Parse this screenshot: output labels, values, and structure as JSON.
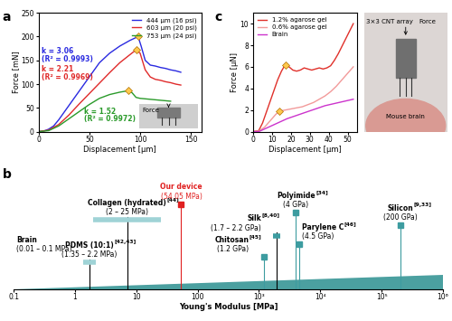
{
  "chart_data": [
    {
      "type": "line",
      "title": "a",
      "xlabel": "Displacement [μm]",
      "ylabel": "Force [mN]",
      "xlim": [
        0,
        160
      ],
      "xticks": [
        0,
        50,
        100,
        150
      ],
      "ylim": [
        0,
        250
      ],
      "yticks": [
        0,
        50,
        100,
        150,
        200,
        250
      ],
      "legend": "upper right",
      "series": [
        {
          "name": "444 μm (16 psi)",
          "color": "#2a2ae0",
          "x": [
            0,
            5,
            10,
            15,
            20,
            30,
            40,
            50,
            60,
            70,
            80,
            90,
            98,
            101,
            105,
            110,
            115,
            120,
            125,
            130,
            135,
            140
          ],
          "values": [
            0,
            1,
            5,
            12,
            25,
            55,
            85,
            115,
            145,
            165,
            180,
            192,
            200,
            180,
            150,
            140,
            138,
            135,
            133,
            130,
            128,
            125
          ],
          "peak": {
            "x": 98,
            "y": 200
          }
        },
        {
          "name": "603 μm (20 psi)",
          "color": "#e02a2a",
          "x": [
            0,
            10,
            20,
            30,
            40,
            50,
            60,
            70,
            80,
            90,
            96,
            100,
            105,
            110,
            115,
            120,
            125,
            130,
            135,
            140
          ],
          "values": [
            0,
            3,
            15,
            35,
            58,
            80,
            102,
            124,
            145,
            162,
            172,
            165,
            130,
            115,
            110,
            108,
            105,
            103,
            100,
            98
          ],
          "peak": {
            "x": 96,
            "y": 172
          }
        },
        {
          "name": "753 μm (24 psi)",
          "color": "#2a9a2a",
          "x": [
            0,
            10,
            20,
            30,
            40,
            50,
            60,
            70,
            80,
            88,
            92,
            96,
            100,
            110,
            120,
            130
          ],
          "values": [
            0,
            2,
            12,
            27,
            42,
            57,
            70,
            78,
            83,
            86,
            82,
            72,
            70,
            68,
            66,
            64
          ],
          "peak": {
            "x": 88,
            "y": 86
          }
        }
      ],
      "annotations": [
        {
          "text": "k = 3.06",
          "color": "#2a2ae0"
        },
        {
          "text": "(R² = 0.9993)",
          "color": "#2a2ae0"
        },
        {
          "text": "k = 2.21",
          "color": "#e02a2a"
        },
        {
          "text": "(R² = 0.9969)",
          "color": "#e02a2a"
        },
        {
          "text": "k = 1.52",
          "color": "#2a9a2a"
        },
        {
          "text": "(R² = 0.9972)",
          "color": "#2a9a2a"
        }
      ],
      "photo_labels": [
        "Force"
      ]
    },
    {
      "type": "line",
      "title": "c",
      "xlabel": "Displacement [μm]",
      "ylabel": "Force [μN]",
      "xlim": [
        0,
        55
      ],
      "xticks": [
        0,
        10,
        20,
        30,
        40,
        50
      ],
      "ylim": [
        0,
        11
      ],
      "yticks": [
        0,
        2,
        4,
        6,
        8,
        10
      ],
      "legend": "upper left",
      "series": [
        {
          "name": "1.2% agarose gel",
          "color": "#e0302a",
          "x": [
            0,
            3,
            5,
            7,
            9,
            11,
            13,
            15,
            17,
            19,
            21,
            23,
            25,
            27,
            29,
            31,
            33,
            35,
            37,
            39,
            41,
            43,
            45,
            47,
            49,
            51,
            53
          ],
          "values": [
            0,
            0.1,
            0.8,
            1.8,
            2.8,
            3.8,
            4.8,
            5.6,
            6.2,
            6.0,
            5.7,
            5.6,
            5.7,
            5.9,
            5.8,
            5.7,
            5.8,
            5.9,
            5.8,
            5.9,
            6.1,
            6.6,
            7.2,
            7.9,
            8.6,
            9.3,
            10.0
          ],
          "peak": {
            "x": 17,
            "y": 6.2
          }
        },
        {
          "name": "0.6% agarose gel",
          "color": "#f29a9a",
          "x": [
            0,
            3,
            6,
            9,
            12,
            14,
            17,
            20,
            23,
            26,
            29,
            32,
            35,
            38,
            41,
            44,
            47,
            50,
            53
          ],
          "values": [
            0,
            0.05,
            0.4,
            1.0,
            1.6,
            1.9,
            2.0,
            2.1,
            2.2,
            2.3,
            2.5,
            2.7,
            3.0,
            3.3,
            3.7,
            4.2,
            4.8,
            5.4,
            6.0
          ],
          "peak": {
            "x": 14,
            "y": 1.9
          }
        },
        {
          "name": "Brain",
          "color": "#cc33cc",
          "x": [
            0,
            3,
            8,
            13,
            18,
            23,
            28,
            33,
            38,
            43,
            48,
            53
          ],
          "values": [
            0,
            0,
            0.4,
            0.8,
            1.2,
            1.5,
            1.8,
            2.1,
            2.4,
            2.6,
            2.8,
            3.0
          ]
        }
      ],
      "photo_labels": [
        "3×3 CNT array",
        "Force",
        "Mouse brain"
      ]
    },
    {
      "type": "range",
      "title": "b",
      "xlabel": "Young's Modulus [MPa]",
      "log": "x",
      "xlim": [
        0.1,
        1000000
      ],
      "xticks": [
        0.1,
        1,
        10,
        100,
        {
          "value": 1000,
          "label": "10³"
        },
        {
          "value": 10000,
          "label": "10⁴"
        },
        {
          "value": 100000,
          "label": "10⁵"
        },
        {
          "value": 1000000,
          "label": "10⁶"
        }
      ],
      "tick_labels": "x",
      "series": [
        {
          "name": "Brain",
          "range_label": "(0.01 – 0.1 MPa)",
          "low": 0.01,
          "high": 0.1,
          "color": "#9fd3d6"
        },
        {
          "name": "PDMS (10:1)",
          "ref": "[42,43]",
          "range_label": "(1.35 – 2.2 MPa)",
          "low": 1.35,
          "high": 2.2,
          "color": "#9fd3d6"
        },
        {
          "name": "Collagen (hydrated)",
          "ref": "[44]",
          "range_label": "(2 – 25 MPa)",
          "low": 2,
          "high": 25,
          "color": "#9fd3d6"
        },
        {
          "name": "Our device",
          "range_label": "(54.05 MPa)",
          "value": 54.05,
          "color": "#e02020"
        },
        {
          "name": "Chitosan",
          "ref": "[45]",
          "range_label": "(1.2 GPa)",
          "value": 1200,
          "color": "#3d9ca0"
        },
        {
          "name": "Silk",
          "ref": "[8,40]",
          "range_label": "(1.7 – 2.2 GPa)",
          "low": 1700,
          "high": 2200,
          "color": "#3d9ca0"
        },
        {
          "name": "Polyimide",
          "ref": "[34]",
          "range_label": "(4 GPa)",
          "value": 4000,
          "color": "#3d9ca0"
        },
        {
          "name": "Parylene C",
          "ref": "[46]",
          "range_label": "(4.5 GPa)",
          "value": 4500,
          "color": "#3d9ca0"
        },
        {
          "name": "Silicon",
          "ref": "[9,33]",
          "range_label": "(200 GPa)",
          "value": 200000,
          "color": "#3d9ca0"
        }
      ]
    }
  ]
}
